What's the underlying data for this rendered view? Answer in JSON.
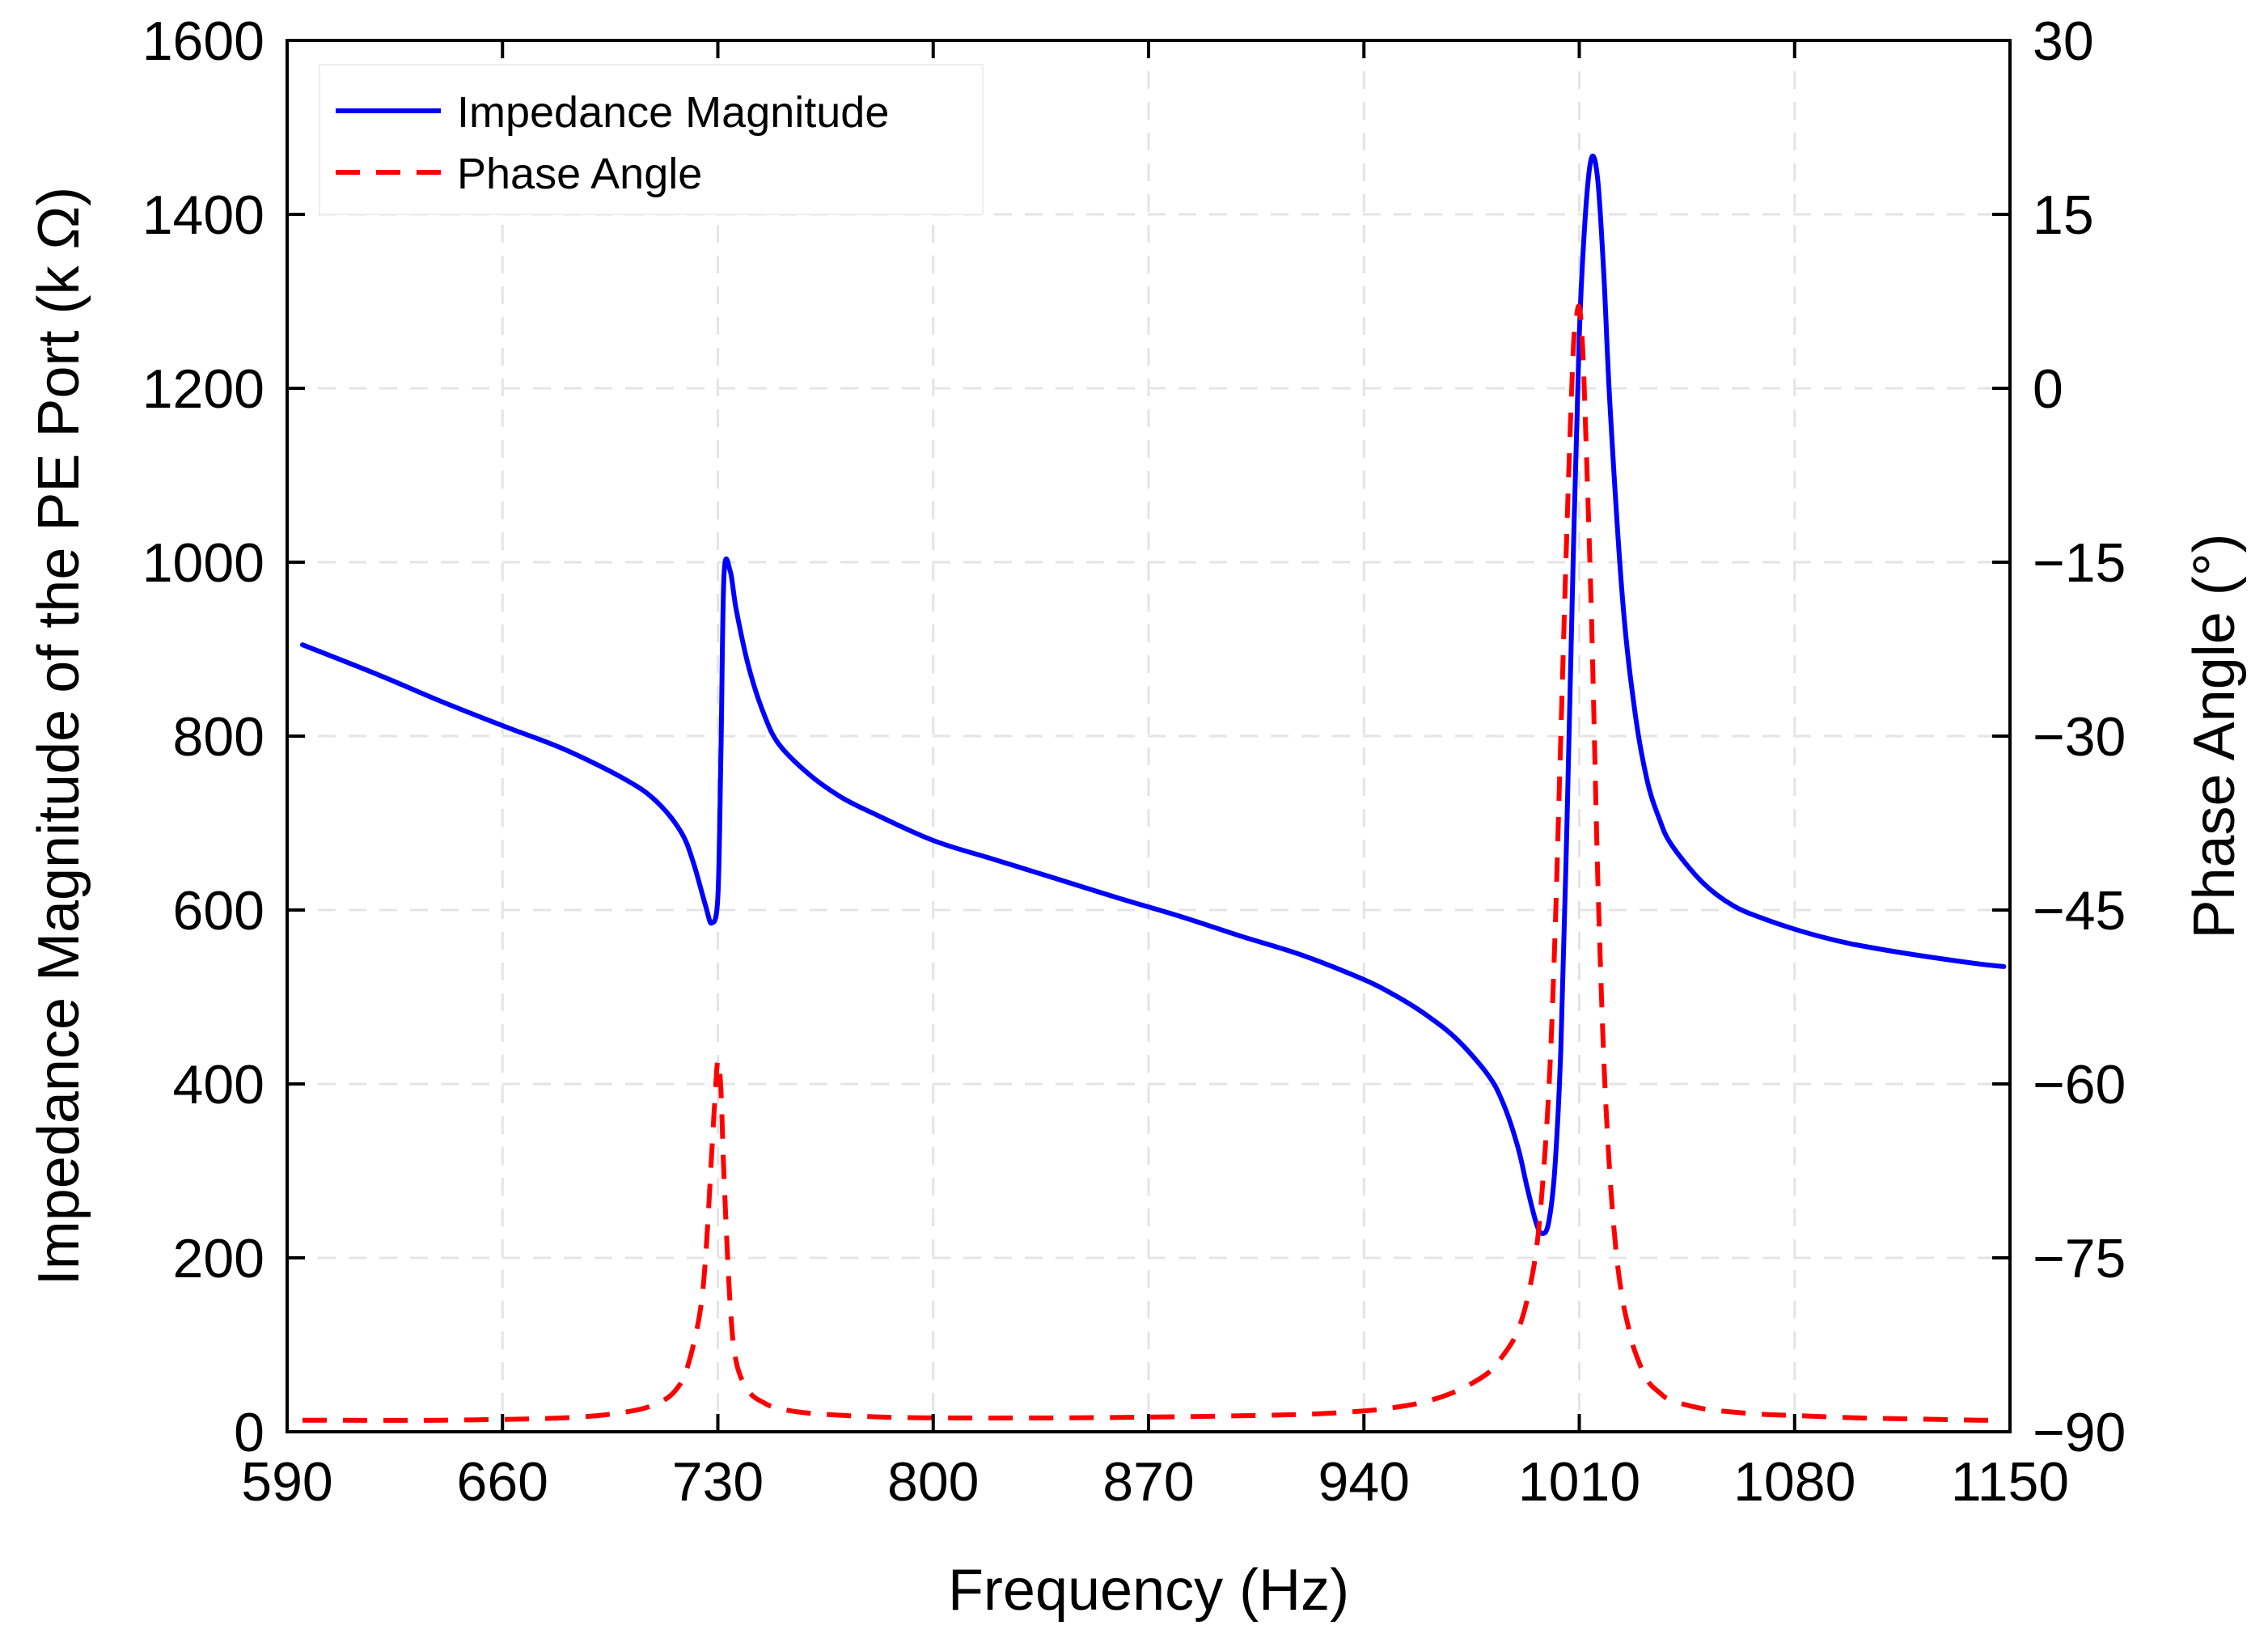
{
  "chart_data": {
    "type": "line",
    "title": "",
    "xlabel": "Frequency (Hz)",
    "ylabel_left": "Impedance Magnitude of the PE Port (k Ω)",
    "ylabel_right": "Phase Angle (°)",
    "xlim": [
      590,
      1150
    ],
    "ylim_left": [
      0,
      1600
    ],
    "ylim_right": [
      -90,
      30
    ],
    "x_ticks": [
      590,
      660,
      730,
      800,
      870,
      940,
      1010,
      1080,
      1150
    ],
    "y_left_ticks": [
      0,
      200,
      400,
      600,
      800,
      1000,
      1200,
      1400,
      1600
    ],
    "y_right_ticks": [
      -90,
      -75,
      -60,
      -45,
      -30,
      -15,
      0,
      15,
      30
    ],
    "x_tick_labels": [
      "590",
      "660",
      "730",
      "800",
      "870",
      "940",
      "1010",
      "1080",
      "1150"
    ],
    "y_left_tick_labels": [
      "0",
      "200",
      "400",
      "600",
      "800",
      "1000",
      "1200",
      "1400",
      "1600"
    ],
    "y_right_tick_labels": [
      "−90",
      "−75",
      "−60",
      "−45",
      "−30",
      "−15",
      "0",
      "15",
      "30"
    ],
    "grid": true,
    "legend_position": "top-left",
    "series": [
      {
        "name": "Impedance Magnitude",
        "axis": "left",
        "color": "#0000ff",
        "style": "solid",
        "x": [
          595,
          620,
          640,
          660,
          680,
          700,
          710,
          718,
          722,
          726,
          728,
          730,
          731,
          732,
          734,
          736,
          740,
          745,
          750,
          760,
          770,
          780,
          800,
          820,
          840,
          860,
          880,
          900,
          920,
          940,
          950,
          960,
          970,
          980,
          985,
          990,
          993,
          996,
          998,
          1000,
          1002,
          1004,
          1006,
          1008,
          1010,
          1012,
          1014,
          1016,
          1018,
          1020,
          1024,
          1028,
          1032,
          1036,
          1040,
          1050,
          1060,
          1070,
          1080,
          1090,
          1100,
          1120,
          1140,
          1148
        ],
        "y": [
          905,
          870,
          840,
          812,
          785,
          750,
          725,
          690,
          655,
          605,
          585,
          615,
          780,
          985,
          990,
          945,
          880,
          825,
          790,
          755,
          730,
          712,
          680,
          658,
          636,
          614,
          593,
          570,
          548,
          520,
          502,
          480,
          452,
          412,
          380,
          328,
          282,
          240,
          228,
          240,
          300,
          440,
          700,
          1000,
          1260,
          1400,
          1465,
          1440,
          1330,
          1180,
          960,
          830,
          750,
          705,
          675,
          632,
          605,
          590,
          578,
          568,
          560,
          548,
          538,
          535
        ]
      },
      {
        "name": "Phase Angle",
        "axis": "right",
        "color": "#ff0000",
        "style": "dashed",
        "x": [
          595,
          640,
          680,
          700,
          710,
          716,
          720,
          724,
          726,
          728,
          729,
          730,
          731,
          732,
          734,
          736,
          740,
          745,
          750,
          760,
          780,
          800,
          840,
          880,
          920,
          940,
          950,
          960,
          970,
          980,
          985,
          990,
          994,
          997,
          1000,
          1002,
          1004,
          1006,
          1008,
          1009,
          1010,
          1011,
          1012,
          1014,
          1016,
          1018,
          1020,
          1022,
          1024,
          1026,
          1028,
          1032,
          1036,
          1040,
          1050,
          1060,
          1070,
          1080,
          1100,
          1120,
          1140,
          1148
        ],
        "y": [
          -89,
          -89,
          -88.8,
          -88.3,
          -87.6,
          -86.5,
          -84.5,
          -80,
          -75,
          -66,
          -61.5,
          -58,
          -60.5,
          -68,
          -79,
          -84,
          -86.5,
          -87.5,
          -88,
          -88.4,
          -88.7,
          -88.8,
          -88.8,
          -88.7,
          -88.5,
          -88.2,
          -87.9,
          -87.4,
          -86.5,
          -85,
          -83.5,
          -81.3,
          -77.5,
          -72,
          -61,
          -48,
          -30,
          -12,
          3,
          6,
          7,
          4,
          -3,
          -20,
          -42,
          -58,
          -68,
          -74.5,
          -78.5,
          -81,
          -83,
          -85.5,
          -86.6,
          -87.3,
          -88,
          -88.3,
          -88.5,
          -88.6,
          -88.8,
          -88.9,
          -89,
          -89
        ]
      }
    ]
  }
}
